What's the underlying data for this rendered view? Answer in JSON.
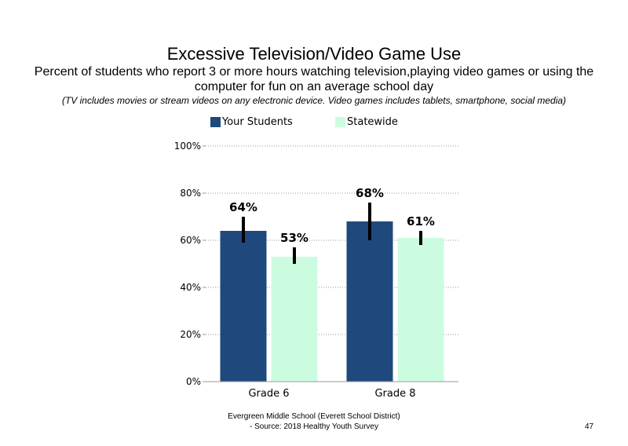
{
  "chart_data": {
    "type": "bar",
    "title": "Excessive Television/Video Game Use",
    "subtitle": "Percent of students  who report 3 or more hours watching television,playing video games or using the computer for fun on an average school day",
    "note": "(TV includes movies or stream videos on any electronic device. Video games includes tablets, smartphone, social media)",
    "categories": [
      "Grade 6",
      "Grade 8"
    ],
    "series": [
      {
        "name": "Your Students",
        "color": "#1F497D",
        "values": [
          64,
          68
        ],
        "labels": [
          "64%",
          "68%"
        ],
        "error_low": [
          59,
          60
        ],
        "error_high": [
          70,
          76
        ]
      },
      {
        "name": "Statewide",
        "color": "#CCFCE0",
        "values": [
          53,
          61
        ],
        "labels": [
          "53%",
          "61%"
        ],
        "error_low": [
          50,
          58
        ],
        "error_high": [
          57,
          64
        ]
      }
    ],
    "ylim": [
      0,
      100
    ],
    "yticks": [
      0,
      20,
      40,
      60,
      80,
      100
    ],
    "ytick_labels": [
      "0%",
      "20%",
      "40%",
      "60%",
      "80%",
      "100%"
    ],
    "grid": true,
    "legend_position": "top"
  },
  "footer": {
    "line1": "Evergreen Middle  School (Everett School District)",
    "line2": "- Source: 2018 Healthy  Youth Survey"
  },
  "page_number": "47"
}
